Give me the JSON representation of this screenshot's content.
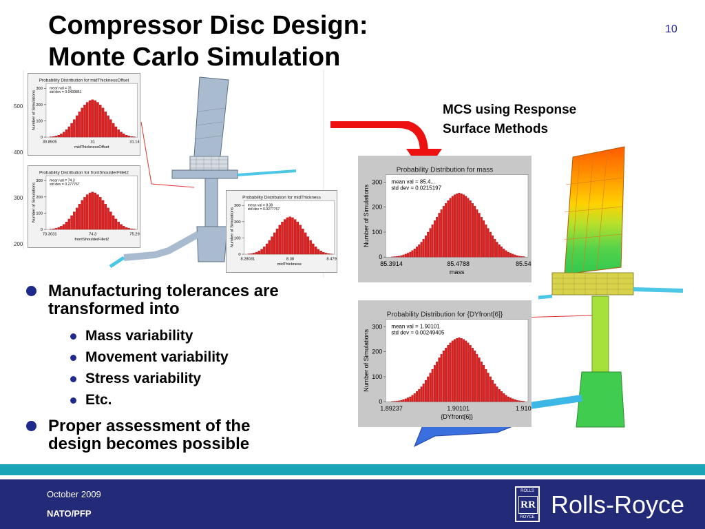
{
  "slide": {
    "title_line1": "Compressor Disc Design:",
    "title_line2": "Monte Carlo Simulation",
    "number": "10",
    "mcs_line1": "MCS using Response",
    "mcs_line2": "Surface Methods"
  },
  "bullets": [
    {
      "text_line1": "Manufacturing tolerances are",
      "text_line2": "transformed into",
      "sub": [
        "Mass variability",
        "Movement variability",
        "Stress variability",
        "Etc."
      ]
    },
    {
      "text_line1": "Proper assessment of the",
      "text_line2": "design becomes possible"
    }
  ],
  "footer": {
    "date": "October 2009",
    "org": "NATO/PFP",
    "logo_word": "Rolls-Royce",
    "badge_top": "ROLLS",
    "badge_mono": "RR",
    "badge_bottom": "ROYCE"
  },
  "background_axis_ticks": [
    "500",
    "400",
    "300",
    "200"
  ],
  "colors": {
    "accent_blue": "#1f2a8c",
    "footer": "#232b78",
    "stripe": "#1aa4b8",
    "histogram_bars": "#e02020",
    "arrow": "#ee1111"
  },
  "chart_data": [
    {
      "type": "bar",
      "title": "Probability Distribution for mass",
      "annotations": [
        "mean val = 85.4...",
        "std dev = 0.0215197"
      ],
      "xlabel": "mass",
      "ylabel": "Number of Simulations",
      "x_ticks": [
        "85.3914",
        "85.4788",
        "85.547"
      ],
      "y_ticks": [
        "0",
        "100",
        "200",
        "300"
      ],
      "ylim": [
        0,
        330
      ],
      "values": [
        1,
        2,
        3,
        4,
        6,
        9,
        12,
        16,
        20,
        26,
        33,
        41,
        50,
        60,
        72,
        86,
        100,
        115,
        130,
        146,
        160,
        176,
        190,
        204,
        215,
        226,
        236,
        244,
        250,
        254,
        257,
        254,
        250,
        244,
        236,
        226,
        215,
        204,
        190,
        176,
        160,
        146,
        130,
        115,
        100,
        86,
        72,
        60,
        50,
        41,
        33,
        26,
        20,
        16,
        12,
        9,
        6,
        4,
        3,
        2
      ]
    },
    {
      "type": "bar",
      "title": "Probability Distribution for {DYfront[6]}",
      "annotations": [
        "mean val = 1.90101",
        "std dev = 0.00249405"
      ],
      "xlabel": "{DYfront[6]}",
      "ylabel": "Number of Simulations",
      "x_ticks": [
        "1.89237",
        "1.90101",
        "1.9104"
      ],
      "y_ticks": [
        "0",
        "100",
        "200",
        "300"
      ],
      "ylim": [
        0,
        330
      ],
      "values": [
        1,
        2,
        3,
        4,
        6,
        9,
        12,
        16,
        20,
        26,
        33,
        41,
        50,
        60,
        72,
        86,
        100,
        115,
        130,
        146,
        160,
        176,
        190,
        204,
        215,
        226,
        236,
        244,
        250,
        254,
        257,
        254,
        250,
        244,
        236,
        226,
        215,
        204,
        190,
        176,
        160,
        146,
        130,
        115,
        100,
        86,
        72,
        60,
        50,
        41,
        33,
        26,
        20,
        16,
        12,
        9,
        6,
        4,
        3,
        2
      ]
    },
    {
      "type": "bar",
      "title": "Probability Distribution for midThicknessOffset",
      "annotations": [
        "mean val = 31",
        "std dev = 0.0439851"
      ],
      "xlabel": "midThicknessOffset",
      "ylabel": "Number of Simulations",
      "x_ticks": [
        "30.8505",
        "31",
        "31.149"
      ],
      "y_ticks": [
        "0",
        "100",
        "200",
        "300"
      ],
      "ylim": [
        0,
        330
      ],
      "values": [
        2,
        4,
        7,
        12,
        20,
        31,
        46,
        64,
        85,
        108,
        132,
        156,
        179,
        198,
        214,
        225,
        230,
        225,
        214,
        198,
        179,
        156,
        132,
        108,
        85,
        64,
        46,
        31,
        20,
        12,
        7,
        4,
        2
      ]
    },
    {
      "type": "bar",
      "title": "Probability Distribution for frontShoulderFillet2",
      "annotations": [
        "mean val = 74.3",
        "std dev = 0.277767"
      ],
      "xlabel": "frontShoulderFillet2",
      "ylabel": "Number of Simulations",
      "x_ticks": [
        "73.3031",
        "74.3",
        "75.296"
      ],
      "y_ticks": [
        "0",
        "100",
        "200",
        "300"
      ],
      "ylim": [
        0,
        330
      ],
      "values": [
        2,
        4,
        7,
        12,
        20,
        31,
        46,
        64,
        85,
        108,
        132,
        156,
        179,
        198,
        214,
        225,
        230,
        225,
        214,
        198,
        179,
        156,
        132,
        108,
        85,
        64,
        46,
        31,
        20,
        12,
        7,
        4,
        2
      ]
    },
    {
      "type": "bar",
      "title": "Probability Distribution for midThickness",
      "annotations": [
        "mean val = 8.38",
        "std dev = 0.0277767"
      ],
      "xlabel": "midThickness",
      "ylabel": "Number of Simulations",
      "x_ticks": [
        "8.28031",
        "8.38",
        "8.4796"
      ],
      "y_ticks": [
        "0",
        "100",
        "200",
        "300"
      ],
      "ylim": [
        0,
        330
      ],
      "values": [
        2,
        4,
        7,
        12,
        20,
        31,
        46,
        64,
        85,
        108,
        132,
        156,
        179,
        198,
        214,
        225,
        230,
        225,
        214,
        198,
        179,
        156,
        132,
        108,
        85,
        64,
        46,
        31,
        20,
        12,
        7,
        4,
        2
      ]
    }
  ]
}
